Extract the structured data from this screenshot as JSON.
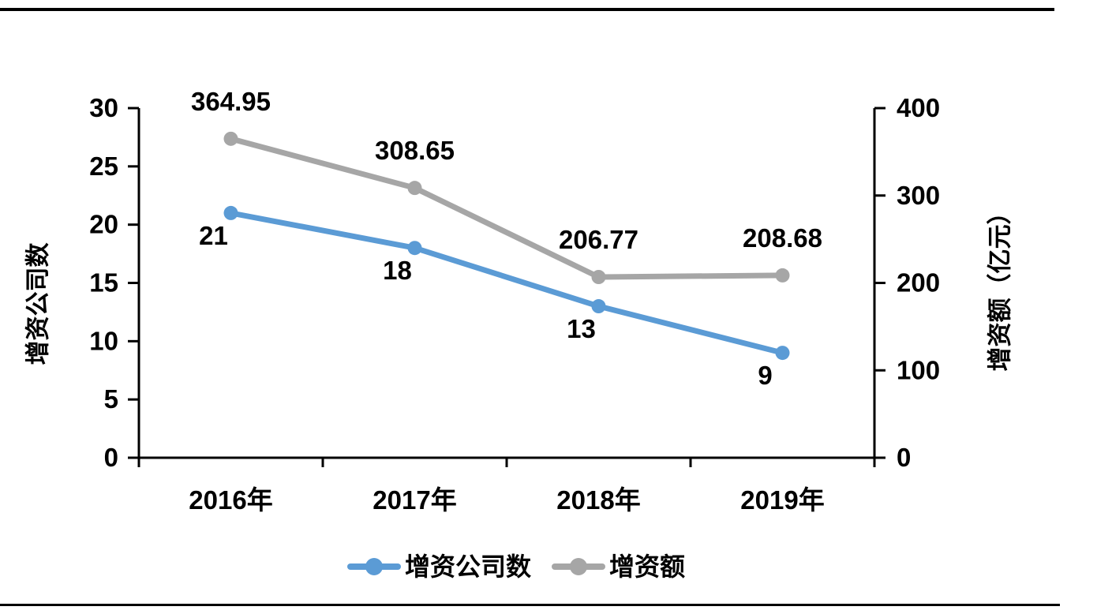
{
  "colors": {
    "series1": "#5B9BD5",
    "series2": "#A6A6A6",
    "axis": "#000000",
    "text": "#000000",
    "background": "#FFFFFF"
  },
  "chart_data": {
    "type": "line",
    "categories": [
      "2016年",
      "2017年",
      "2018年",
      "2019年"
    ],
    "series": [
      {
        "name": "增资公司数",
        "axis": "left",
        "color": "#5B9BD5",
        "values": [
          21,
          18,
          13,
          9
        ],
        "labels": [
          "21",
          "18",
          "13",
          "9"
        ]
      },
      {
        "name": "增资额",
        "axis": "right",
        "color": "#A6A6A6",
        "values": [
          364.95,
          308.65,
          206.77,
          208.68
        ],
        "labels": [
          "364.95",
          "308.65",
          "206.77",
          "208.68"
        ]
      }
    ],
    "left_axis": {
      "title": "增资公司数",
      "min": 0,
      "max": 30,
      "step": 5,
      "tick_labels": [
        "0",
        "5",
        "10",
        "15",
        "20",
        "25",
        "30"
      ]
    },
    "right_axis": {
      "title": "增资额（亿元）",
      "min": 0,
      "max": 400,
      "step": 100,
      "tick_labels": [
        "0",
        "100",
        "200",
        "300",
        "400"
      ]
    },
    "grid": false,
    "legend_position": "bottom"
  }
}
